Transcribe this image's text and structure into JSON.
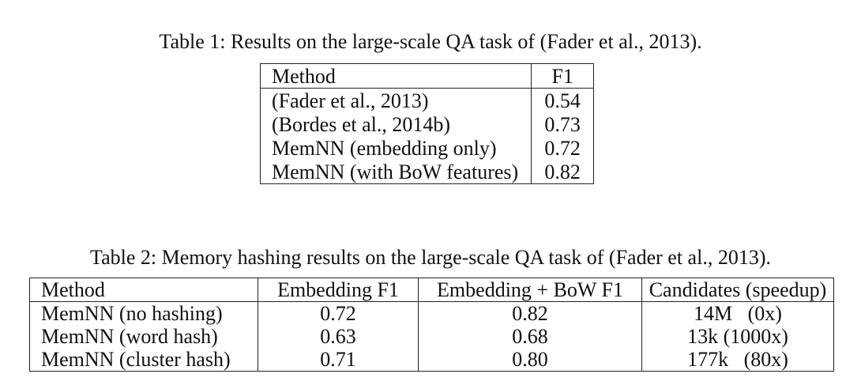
{
  "table1": {
    "caption": "Table 1: Results on the large-scale QA task of (Fader et al., 2013).",
    "headers": [
      "Method",
      "F1"
    ],
    "rows": [
      [
        "(Fader et al., 2013)",
        "0.54"
      ],
      [
        "(Bordes et al., 2014b)",
        "0.73"
      ],
      [
        "MemNN (embedding only)",
        "0.72"
      ],
      [
        "MemNN (with BoW features)",
        "0.82"
      ]
    ]
  },
  "table2": {
    "caption": "Table 2: Memory hashing results on the large-scale QA task of (Fader et al., 2013).",
    "headers": [
      "Method",
      "Embedding F1",
      "Embedding + BoW F1",
      "Candidates (speedup)"
    ],
    "rows": [
      [
        "MemNN (no hashing)",
        "0.72",
        "0.82",
        "14M   (0x)"
      ],
      [
        "MemNN (word hash)",
        "0.63",
        "0.68",
        "13k (1000x)"
      ],
      [
        "MemNN (cluster hash)",
        "0.71",
        "0.80",
        "177k   (80x)"
      ]
    ]
  }
}
